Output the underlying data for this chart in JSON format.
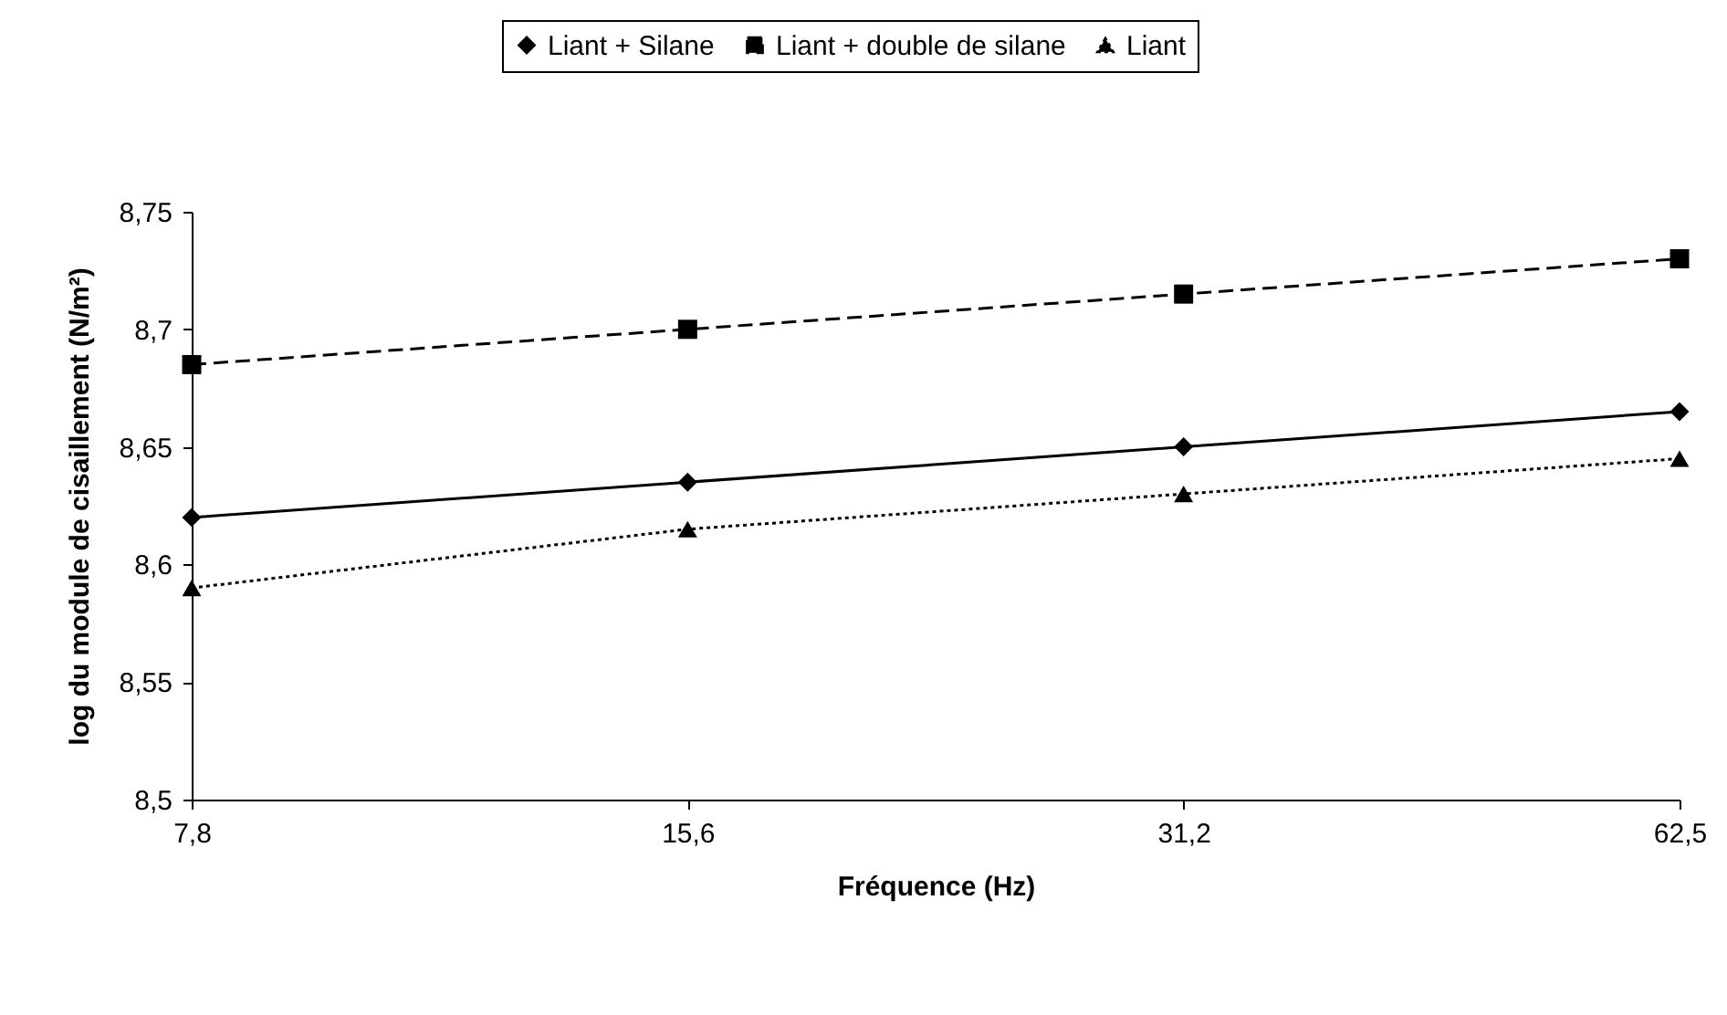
{
  "chart_data": {
    "type": "line",
    "xlabel": "Fréquence (Hz)",
    "ylabel": "log du module de cisaillement (N/m²)",
    "categories": [
      "7,8",
      "15,6",
      "31,2",
      "62,5"
    ],
    "series": [
      {
        "name": "Liant + Silane",
        "color": "#000000",
        "marker": "diamond",
        "line_style": "solid",
        "values": [
          8.62,
          8.635,
          8.65,
          8.665
        ]
      },
      {
        "name": "Liant + double de silane",
        "color": "#000000",
        "marker": "square",
        "line_style": "dashed",
        "values": [
          8.685,
          8.7,
          8.715,
          8.73
        ]
      },
      {
        "name": "Liant",
        "color": "#000000",
        "marker": "triangle",
        "line_style": "dotted",
        "values": [
          8.59,
          8.615,
          8.63,
          8.645
        ]
      }
    ],
    "ylim": [
      8.5,
      8.75
    ],
    "yticks": [
      {
        "value": 8.5,
        "label": "8,5"
      },
      {
        "value": 8.55,
        "label": "8,55"
      },
      {
        "value": 8.6,
        "label": "8,6"
      },
      {
        "value": 8.65,
        "label": "8,65"
      },
      {
        "value": 8.7,
        "label": "8,7"
      },
      {
        "value": 8.75,
        "label": "8,75"
      }
    ],
    "legend": "top"
  }
}
